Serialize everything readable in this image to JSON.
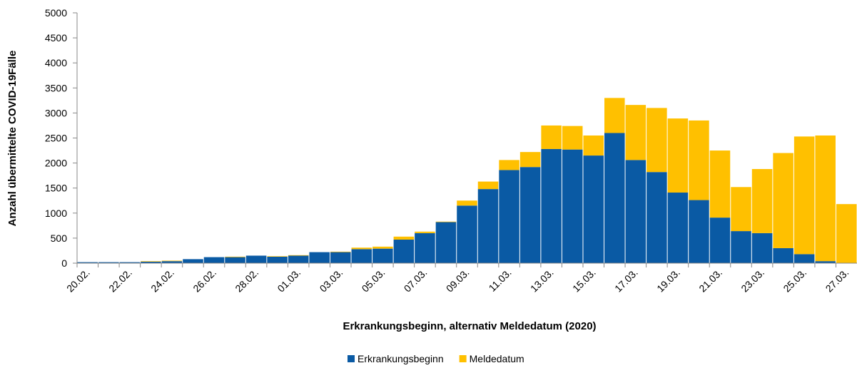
{
  "chart_data": {
    "type": "stacked-bar",
    "y_label": "Anzahl übermittelte COVID-19Fälle",
    "x_label": "Erkrankungsbeginn, alternativ Meldedatum (2020)",
    "categories": [
      "20.02.",
      null,
      "22.02.",
      null,
      "24.02.",
      null,
      "26.02.",
      null,
      "28.02.",
      null,
      "01.03.",
      null,
      "03.03.",
      null,
      "05.03.",
      null,
      "07.03.",
      null,
      "09.03.",
      null,
      "11.03.",
      null,
      "13.03.",
      null,
      "15.03.",
      null,
      "17.03.",
      null,
      "19.03.",
      null,
      "21.03.",
      null,
      "23.03.",
      null,
      "25.03.",
      null,
      "27.03."
    ],
    "series": [
      {
        "name": "Erkrankungsbeginn",
        "color": "#0a5aa4",
        "values": [
          20,
          20,
          20,
          30,
          40,
          80,
          120,
          120,
          150,
          130,
          150,
          220,
          220,
          280,
          290,
          470,
          600,
          820,
          1150,
          1480,
          1860,
          1920,
          2280,
          2270,
          2150,
          2600,
          2060,
          1820,
          1410,
          1260,
          910,
          640,
          600,
          300,
          180,
          40,
          0
        ]
      },
      {
        "name": "Meldedatum",
        "color": "#ffc000",
        "values": [
          0,
          0,
          0,
          10,
          10,
          0,
          0,
          10,
          0,
          10,
          10,
          0,
          10,
          30,
          40,
          60,
          30,
          10,
          100,
          150,
          200,
          300,
          470,
          470,
          400,
          700,
          1100,
          1280,
          1480,
          1590,
          1340,
          880,
          1280,
          1900,
          2350,
          2510,
          1180
        ]
      }
    ],
    "ylim": [
      0,
      5000
    ],
    "yticks": [
      0,
      500,
      1000,
      1500,
      2000,
      2500,
      3000,
      3500,
      4000,
      4500,
      5000
    ],
    "legend": "bottom"
  }
}
